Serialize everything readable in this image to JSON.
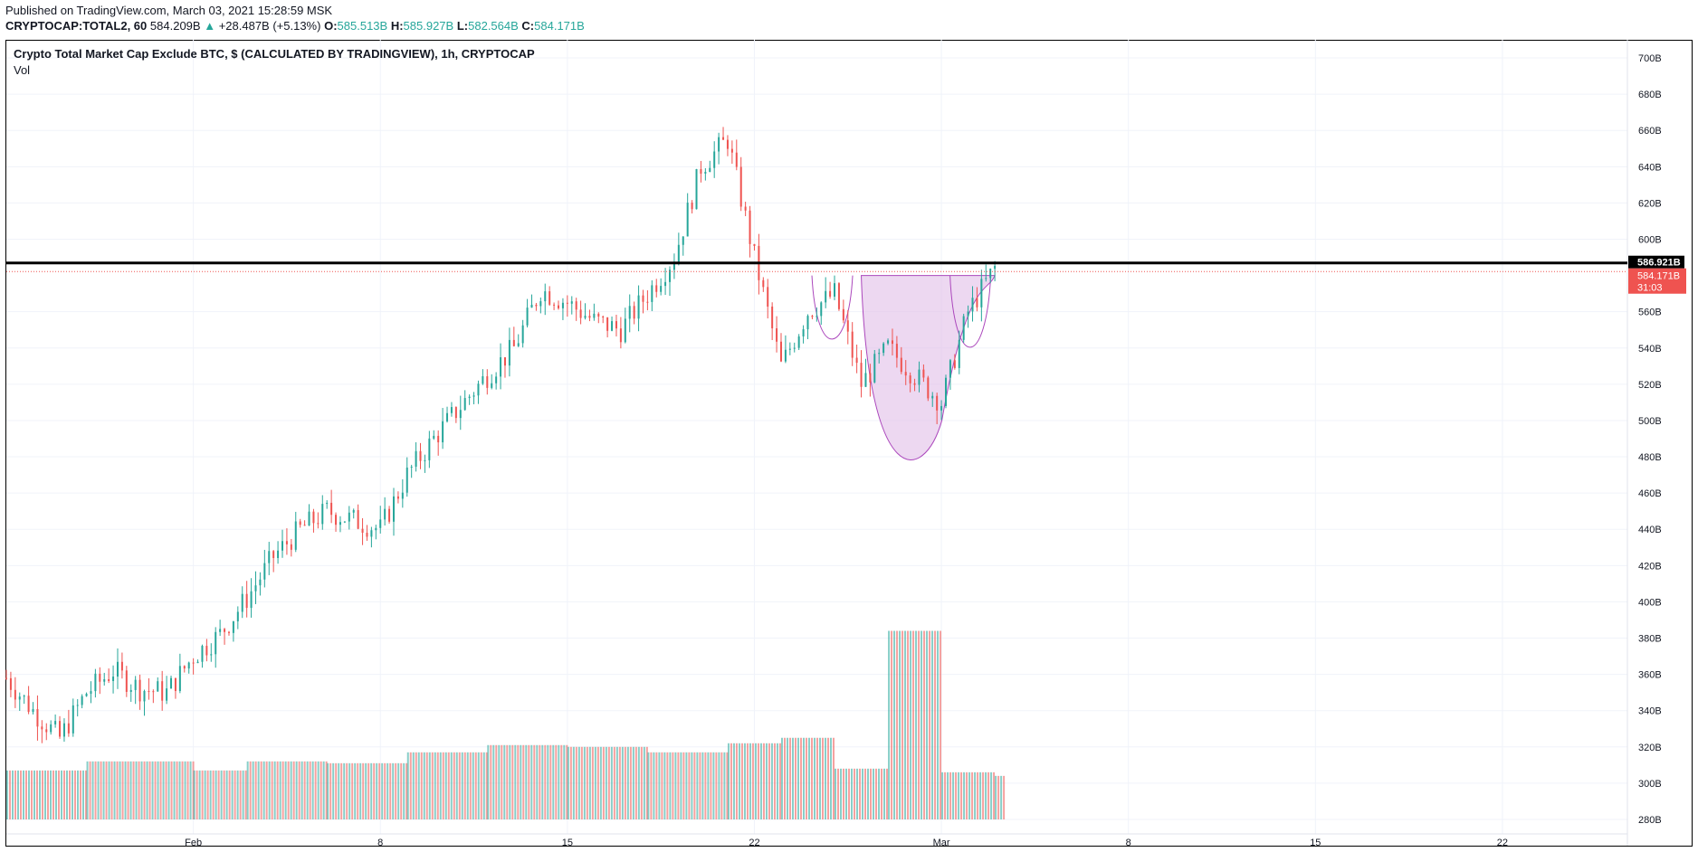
{
  "header": {
    "published": "Published on TradingView.com, March 03, 2021 15:28:59 MSK",
    "symbol": "CRYPTOCAP:TOTAL2, 60",
    "last": "584.209B",
    "change": "+28.487B (+5.13%)",
    "change_arrow": "▲",
    "o_label": "O:",
    "o_value": "585.513B",
    "h_label": "H:",
    "h_value": "585.927B",
    "l_label": "L:",
    "l_value": "582.564B",
    "c_label": "C:",
    "c_value": "584.171B"
  },
  "legend": {
    "title": "Crypto Total Market Cap Exclude BTC, $ (CALCULATED BY TRADINGVIEW), 1h, CRYPTOCAP",
    "volume": "Vol"
  },
  "badges": {
    "level": "586.921B",
    "price": "584.171B",
    "countdown": "31:03"
  },
  "colors": {
    "up": "#26a69a",
    "down": "#ef5350",
    "level_line": "#000000",
    "pattern_fill": "#e1bee7",
    "pattern_stroke": "#ab47bc",
    "grid": "#f0f3fa",
    "axis_text": "#131722"
  },
  "chart_data": {
    "type": "candlestick",
    "title": "Crypto Total Market Cap Exclude BTC, $ (CALCULATED BY TRADINGVIEW), 1h, CRYPTOCAP",
    "interval": "1h",
    "x_start_date": "2021-01-25",
    "x_end_date": "2021-03-03",
    "x_axis_limit_date": "2021-03-26",
    "y_unit": "B",
    "ylim": [
      272,
      710
    ],
    "y_ticks": [
      "700B",
      "680B",
      "660B",
      "640B",
      "620B",
      "600B",
      "560B",
      "540B",
      "520B",
      "500B",
      "480B",
      "460B",
      "440B",
      "420B",
      "400B",
      "380B",
      "360B",
      "340B",
      "320B",
      "300B",
      "280B"
    ],
    "x_ticks": [
      {
        "label": "Feb",
        "date": "2021-02-01"
      },
      {
        "label": "8",
        "date": "2021-02-08"
      },
      {
        "label": "15",
        "date": "2021-02-15"
      },
      {
        "label": "22",
        "date": "2021-02-22"
      },
      {
        "label": "Mar",
        "date": "2021-03-01"
      },
      {
        "label": "8",
        "date": "2021-03-08"
      },
      {
        "label": "15",
        "date": "2021-03-15"
      },
      {
        "label": "22",
        "date": "2021-03-22"
      }
    ],
    "price_path": [
      [
        "2021-01-25",
        358
      ],
      [
        "2021-01-26",
        340
      ],
      [
        "2021-01-27",
        325
      ],
      [
        "2021-01-28",
        350
      ],
      [
        "2021-01-29",
        362
      ],
      [
        "2021-01-30",
        352
      ],
      [
        "2021-01-31",
        350
      ],
      [
        "2021-02-01",
        370
      ],
      [
        "2021-02-02",
        382
      ],
      [
        "2021-02-03",
        402
      ],
      [
        "2021-02-04",
        425
      ],
      [
        "2021-02-05",
        440
      ],
      [
        "2021-02-06",
        450
      ],
      [
        "2021-02-07",
        445
      ],
      [
        "2021-02-08",
        440
      ],
      [
        "2021-02-09",
        470
      ],
      [
        "2021-02-10",
        490
      ],
      [
        "2021-02-11",
        508
      ],
      [
        "2021-02-12",
        525
      ],
      [
        "2021-02-13",
        540
      ],
      [
        "2021-02-14",
        572
      ],
      [
        "2021-02-15",
        565
      ],
      [
        "2021-02-16",
        555
      ],
      [
        "2021-02-17",
        550
      ],
      [
        "2021-02-18",
        570
      ],
      [
        "2021-02-19",
        590
      ],
      [
        "2021-02-20",
        640
      ],
      [
        "2021-02-21",
        655
      ],
      [
        "2021-02-22",
        590
      ],
      [
        "2021-02-23",
        530
      ],
      [
        "2021-02-24",
        560
      ],
      [
        "2021-02-25",
        570
      ],
      [
        "2021-02-26",
        520
      ],
      [
        "2021-02-27",
        540
      ],
      [
        "2021-02-28",
        525
      ],
      [
        "2021-03-01",
        510
      ],
      [
        "2021-03-02",
        560
      ],
      [
        "2021-03-03",
        584.2
      ]
    ],
    "volume": [
      [
        "2021-01-25",
        307
      ],
      [
        "2021-01-28",
        312
      ],
      [
        "2021-02-01",
        307
      ],
      [
        "2021-02-03",
        312
      ],
      [
        "2021-02-06",
        311
      ],
      [
        "2021-02-09",
        317
      ],
      [
        "2021-02-12",
        321
      ],
      [
        "2021-02-15",
        320
      ],
      [
        "2021-02-18",
        317
      ],
      [
        "2021-02-21",
        322
      ],
      [
        "2021-02-23",
        325
      ],
      [
        "2021-02-25",
        308
      ],
      [
        "2021-02-27",
        384
      ],
      [
        "2021-03-01",
        306
      ],
      [
        "2021-03-03",
        304
      ]
    ],
    "horizontal_line": {
      "value": 586.921,
      "label": "586.921B"
    },
    "last_price": {
      "value": 584.171,
      "label": "584.171B"
    },
    "pattern": {
      "name": "cup and handle",
      "left_rim": {
        "date": "2021-02-26",
        "value": 580
      },
      "right_rim": {
        "date": "2021-03-03",
        "value": 580
      },
      "cup_bottom": {
        "date": "2021-02-28",
        "value": 480
      },
      "small_cup_left": {
        "date": "2021-02-25",
        "value": 542
      },
      "small_cup_right": {
        "date": "2021-03-02",
        "value": 536
      }
    },
    "grid": true,
    "legend_position": "top-left"
  }
}
